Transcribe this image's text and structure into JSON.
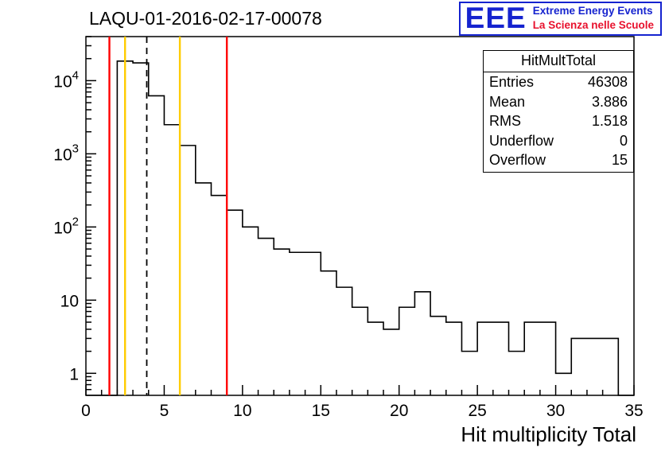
{
  "title": "LAQU-01-2016-02-17-00078",
  "logo": {
    "text": "EEE",
    "line1": "Extreme Energy Events",
    "line2": "La Scienza nelle Scuole",
    "blue": "#1523cf",
    "red": "#e8112d"
  },
  "stats": {
    "title": "HitMultTotal",
    "rows": [
      {
        "label": "Entries",
        "value": "46308"
      },
      {
        "label": "Mean",
        "value": "3.886"
      },
      {
        "label": "RMS",
        "value": "1.518"
      },
      {
        "label": "Underflow",
        "value": "0"
      },
      {
        "label": "Overflow",
        "value": "15"
      }
    ]
  },
  "chart_data": {
    "type": "bar",
    "subtype": "step-histogram",
    "title": "LAQU-01-2016-02-17-00078",
    "xlabel": "Hit multiplicity Total",
    "ylabel": "",
    "y_scale": "log",
    "xlim": [
      0,
      35
    ],
    "ylim": [
      0.5,
      40000
    ],
    "bin_width": 1,
    "bin_start": 0,
    "x_ticks": [
      0,
      5,
      10,
      15,
      20,
      25,
      30,
      35
    ],
    "y_ticks": [
      1,
      10,
      100,
      1000,
      10000
    ],
    "counts": [
      0,
      0,
      18500,
      17500,
      6200,
      2500,
      1300,
      400,
      270,
      170,
      100,
      70,
      50,
      45,
      45,
      25,
      15,
      8,
      5,
      4,
      8,
      13,
      6,
      5,
      2,
      5,
      5,
      2,
      5,
      5,
      1,
      3,
      3,
      3,
      0
    ],
    "line_color": "#000000",
    "grid": "off",
    "vlines": [
      {
        "x": 1.5,
        "color": "#ff0000",
        "style": "solid",
        "name": "red-lower-limit-line"
      },
      {
        "x": 2.5,
        "color": "#ffcc00",
        "style": "solid",
        "name": "yellow-lower-warn-line"
      },
      {
        "x": 3.886,
        "color": "#000000",
        "style": "dashed",
        "name": "mean-dashed-line"
      },
      {
        "x": 6,
        "color": "#ffcc00",
        "style": "solid",
        "name": "yellow-upper-warn-line"
      },
      {
        "x": 9,
        "color": "#ff0000",
        "style": "solid",
        "name": "red-upper-limit-line"
      }
    ]
  }
}
